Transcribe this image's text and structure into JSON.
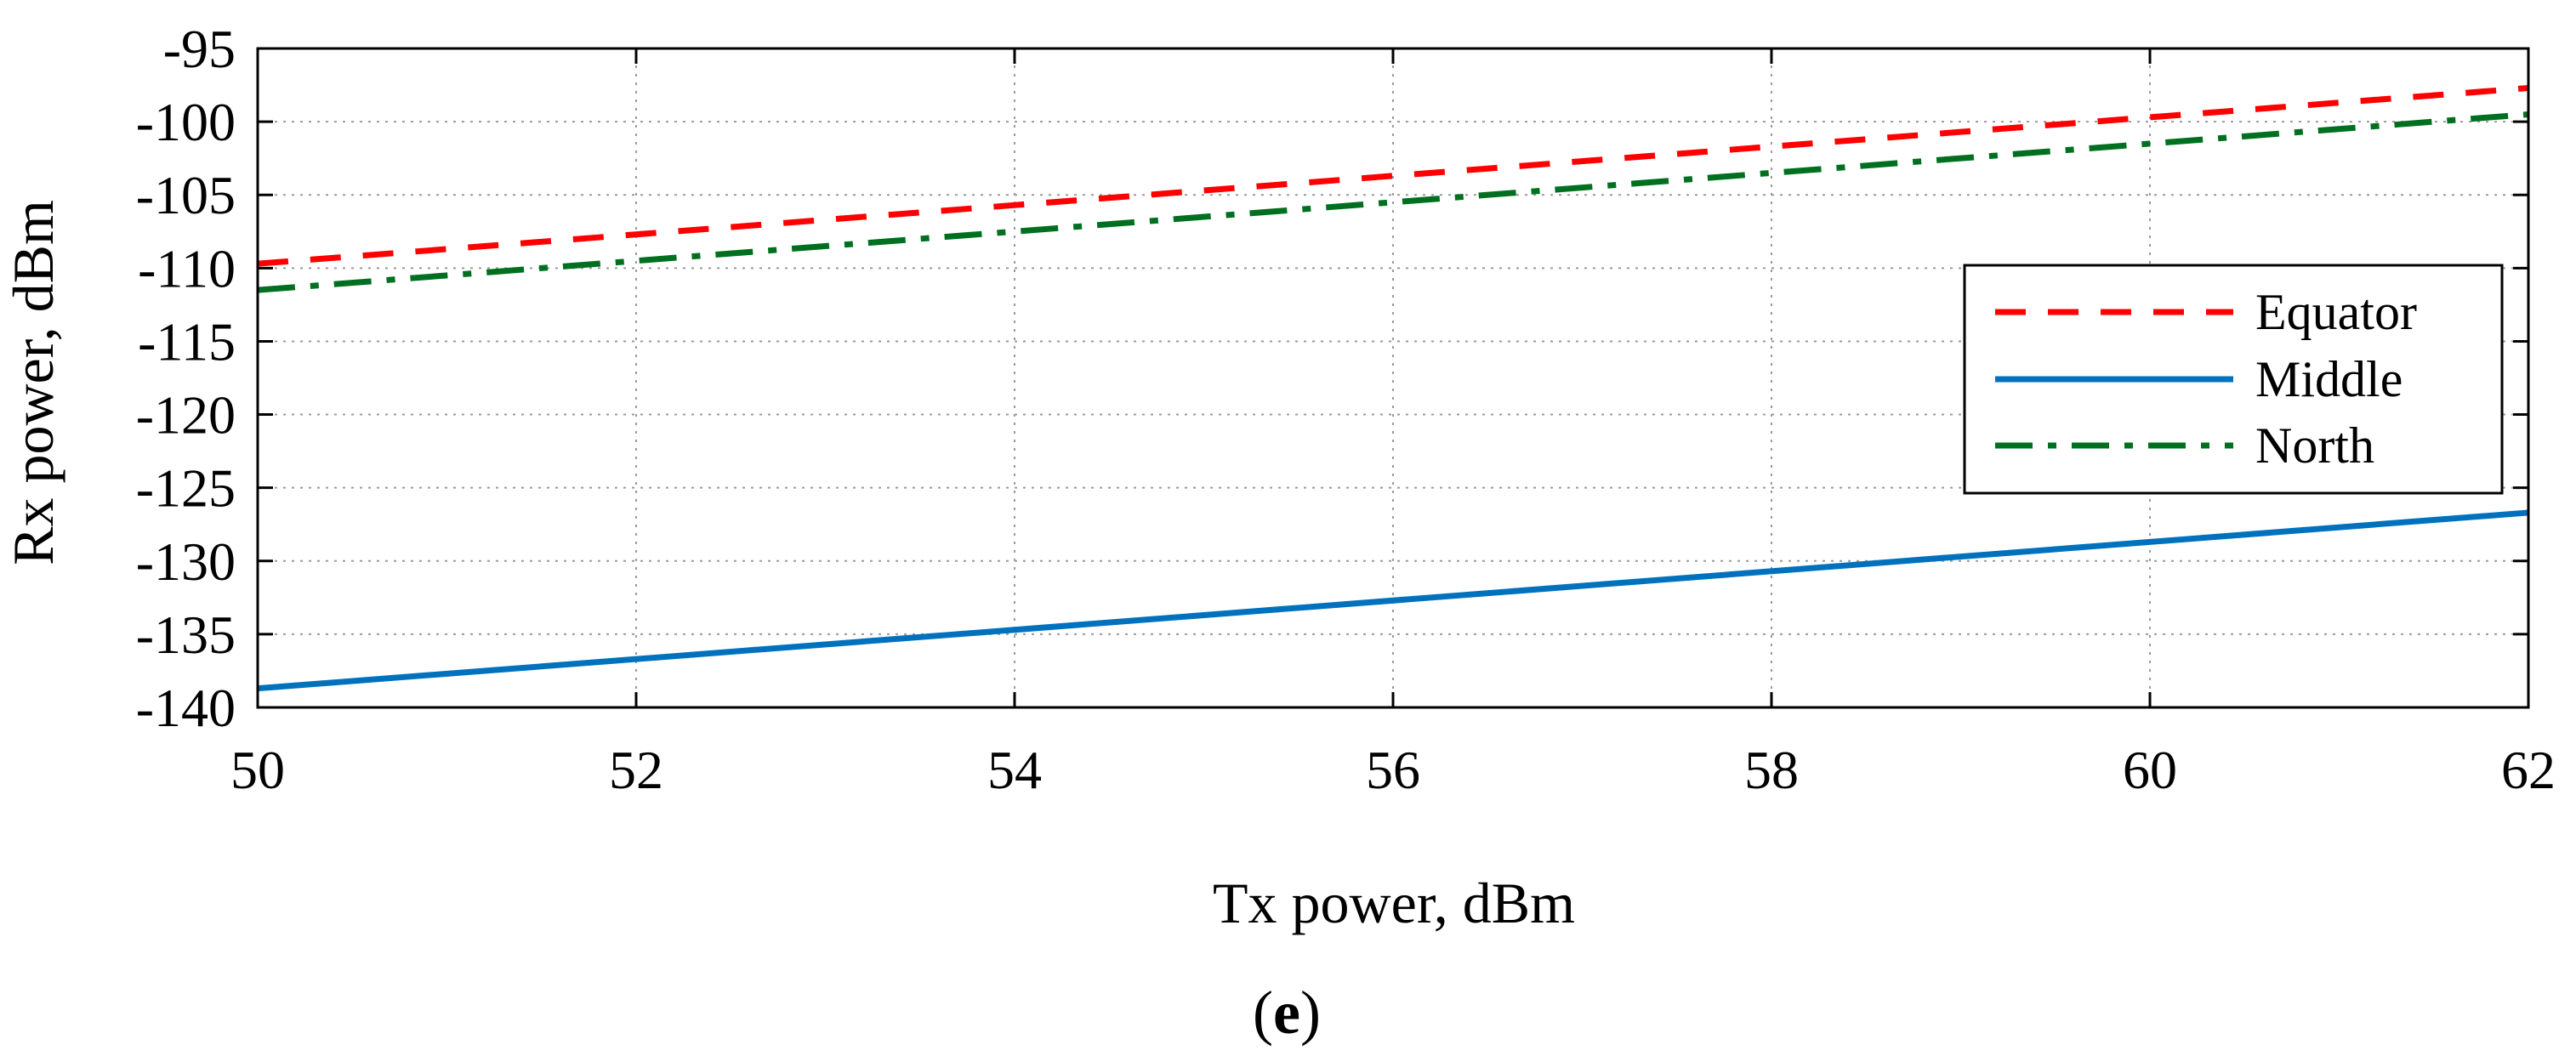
{
  "chart_data": {
    "type": "line",
    "title": "",
    "xlabel": "Tx power, dBm",
    "ylabel": "Rx power, dBm",
    "xlim": [
      50,
      62
    ],
    "ylim": [
      -140,
      -95
    ],
    "x_ticks": [
      50,
      52,
      54,
      56,
      58,
      60,
      62
    ],
    "y_ticks": [
      -95,
      -100,
      -105,
      -110,
      -115,
      -120,
      -125,
      -130,
      -135,
      -140
    ],
    "grid": true,
    "legend_position": "right",
    "series": [
      {
        "name": "Equator",
        "color": "#ff0000",
        "style": "dashed",
        "x": [
          50,
          62
        ],
        "y": [
          -109.7,
          -97.7
        ]
      },
      {
        "name": "Middle",
        "color": "#0072bd",
        "style": "solid",
        "x": [
          50,
          62
        ],
        "y": [
          -138.7,
          -126.7
        ]
      },
      {
        "name": "North",
        "color": "#007020",
        "style": "dashdot",
        "x": [
          50,
          62
        ],
        "y": [
          -111.5,
          -99.5
        ]
      }
    ]
  },
  "caption": {
    "open": "(",
    "letter": "e",
    "close": ")"
  }
}
